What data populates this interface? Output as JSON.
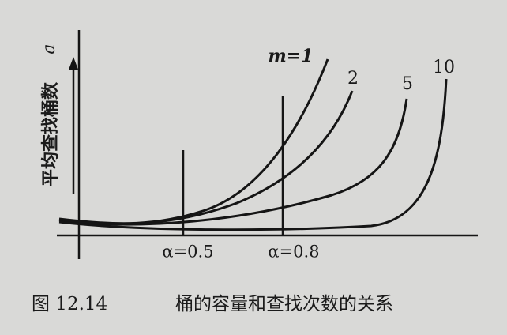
{
  "figure": {
    "y_axis_label": "平均查找桶数",
    "y_axis_symbol": "a",
    "curve_labels": [
      "m=1",
      "2",
      "5",
      "10"
    ],
    "markers": [
      "α=0.5",
      "α=0.8"
    ],
    "caption": {
      "number": "图 12.14",
      "text": "桶的容量和查找次数的关系"
    }
  }
}
